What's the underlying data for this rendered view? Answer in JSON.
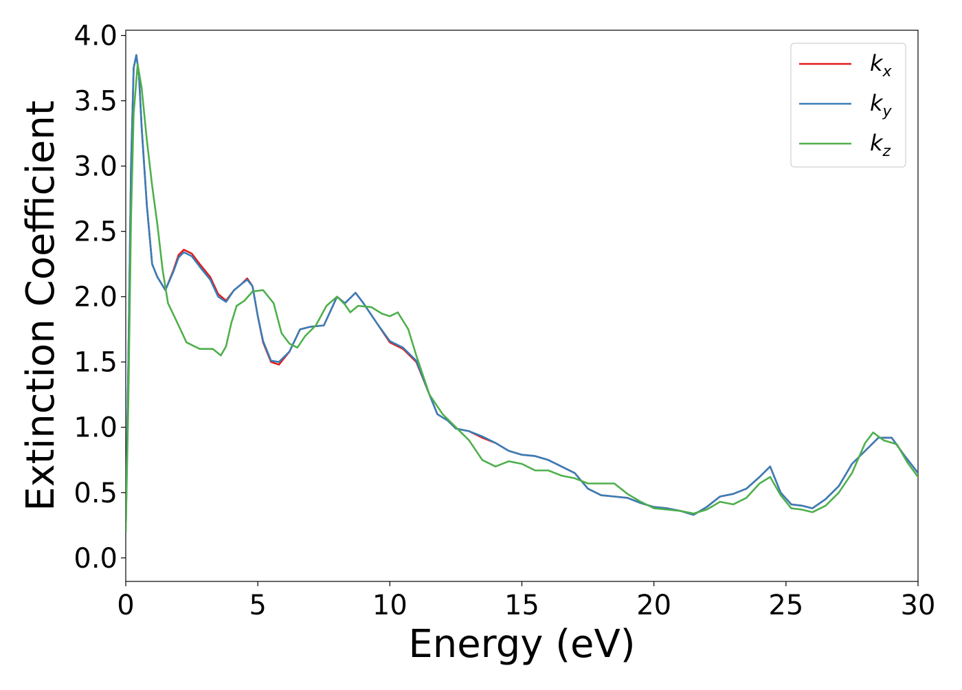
{
  "chart_data": {
    "type": "line",
    "title": "",
    "xlabel": "Energy (eV)",
    "ylabel": "Extinction Coefficient",
    "xlim": [
      0,
      30
    ],
    "ylim": [
      -0.18,
      4.04
    ],
    "xticks": [
      0,
      5,
      10,
      15,
      20,
      25,
      30
    ],
    "xtick_labels": [
      "0",
      "5",
      "10",
      "15",
      "20",
      "25",
      "30"
    ],
    "yticks": [
      0.0,
      0.5,
      1.0,
      1.5,
      2.0,
      2.5,
      3.0,
      3.5,
      4.0
    ],
    "ytick_labels": [
      "0.0",
      "0.5",
      "1.0",
      "1.5",
      "2.0",
      "2.5",
      "3.0",
      "3.5",
      "4.0"
    ],
    "grid": false,
    "legend_position": "top-right",
    "series": [
      {
        "name": "k_x",
        "label_base": "k",
        "label_sub": "x",
        "color": "#e41a1c",
        "points": [
          [
            0,
            0.2
          ],
          [
            0.1,
            1.5
          ],
          [
            0.2,
            3.0
          ],
          [
            0.3,
            3.75
          ],
          [
            0.4,
            3.85
          ],
          [
            0.5,
            3.7
          ],
          [
            0.6,
            3.3
          ],
          [
            0.8,
            2.7
          ],
          [
            1.0,
            2.25
          ],
          [
            1.2,
            2.15
          ],
          [
            1.5,
            2.05
          ],
          [
            1.8,
            2.2
          ],
          [
            2.0,
            2.32
          ],
          [
            2.2,
            2.36
          ],
          [
            2.5,
            2.33
          ],
          [
            2.8,
            2.25
          ],
          [
            3.2,
            2.15
          ],
          [
            3.5,
            2.02
          ],
          [
            3.8,
            1.97
          ],
          [
            4.1,
            2.05
          ],
          [
            4.4,
            2.1
          ],
          [
            4.6,
            2.14
          ],
          [
            4.8,
            2.08
          ],
          [
            5.0,
            1.85
          ],
          [
            5.2,
            1.65
          ],
          [
            5.5,
            1.5
          ],
          [
            5.8,
            1.48
          ],
          [
            6.2,
            1.58
          ],
          [
            6.6,
            1.75
          ],
          [
            7.0,
            1.77
          ],
          [
            7.5,
            1.78
          ],
          [
            8.0,
            2.0
          ],
          [
            8.3,
            1.95
          ],
          [
            8.7,
            2.03
          ],
          [
            9.0,
            1.95
          ],
          [
            9.5,
            1.8
          ],
          [
            10.0,
            1.65
          ],
          [
            10.5,
            1.6
          ],
          [
            11.0,
            1.5
          ],
          [
            11.5,
            1.25
          ],
          [
            11.8,
            1.1
          ],
          [
            12.2,
            1.05
          ],
          [
            12.5,
            0.99
          ],
          [
            13.0,
            0.97
          ],
          [
            13.5,
            0.92
          ],
          [
            14.0,
            0.88
          ],
          [
            14.5,
            0.82
          ],
          [
            15.0,
            0.79
          ],
          [
            15.5,
            0.78
          ],
          [
            16.0,
            0.75
          ],
          [
            16.5,
            0.7
          ],
          [
            17.0,
            0.65
          ],
          [
            17.5,
            0.53
          ],
          [
            18.0,
            0.48
          ],
          [
            18.5,
            0.47
          ],
          [
            19.0,
            0.46
          ],
          [
            19.5,
            0.42
          ],
          [
            20.0,
            0.39
          ],
          [
            20.5,
            0.38
          ],
          [
            21.0,
            0.36
          ],
          [
            21.5,
            0.33
          ],
          [
            22.0,
            0.39
          ],
          [
            22.5,
            0.47
          ],
          [
            23.0,
            0.49
          ],
          [
            23.5,
            0.53
          ],
          [
            24.0,
            0.62
          ],
          [
            24.4,
            0.7
          ],
          [
            24.8,
            0.5
          ],
          [
            25.2,
            0.41
          ],
          [
            25.6,
            0.4
          ],
          [
            26.0,
            0.38
          ],
          [
            26.5,
            0.45
          ],
          [
            27.0,
            0.55
          ],
          [
            27.5,
            0.72
          ],
          [
            28.0,
            0.82
          ],
          [
            28.5,
            0.92
          ],
          [
            29.0,
            0.92
          ],
          [
            29.5,
            0.78
          ],
          [
            30.0,
            0.65
          ]
        ]
      },
      {
        "name": "k_y",
        "label_base": "k",
        "label_sub": "y",
        "color": "#377eb8",
        "points": [
          [
            0,
            0.2
          ],
          [
            0.1,
            1.5
          ],
          [
            0.2,
            3.0
          ],
          [
            0.3,
            3.75
          ],
          [
            0.4,
            3.85
          ],
          [
            0.5,
            3.7
          ],
          [
            0.6,
            3.3
          ],
          [
            0.8,
            2.7
          ],
          [
            1.0,
            2.25
          ],
          [
            1.2,
            2.15
          ],
          [
            1.5,
            2.05
          ],
          [
            1.8,
            2.19
          ],
          [
            2.0,
            2.3
          ],
          [
            2.2,
            2.34
          ],
          [
            2.5,
            2.31
          ],
          [
            2.8,
            2.23
          ],
          [
            3.2,
            2.13
          ],
          [
            3.5,
            2.0
          ],
          [
            3.8,
            1.96
          ],
          [
            4.1,
            2.05
          ],
          [
            4.4,
            2.1
          ],
          [
            4.6,
            2.13
          ],
          [
            4.8,
            2.08
          ],
          [
            5.0,
            1.85
          ],
          [
            5.2,
            1.66
          ],
          [
            5.5,
            1.51
          ],
          [
            5.8,
            1.5
          ],
          [
            6.2,
            1.58
          ],
          [
            6.6,
            1.75
          ],
          [
            7.0,
            1.77
          ],
          [
            7.5,
            1.78
          ],
          [
            8.0,
            2.0
          ],
          [
            8.3,
            1.95
          ],
          [
            8.7,
            2.03
          ],
          [
            9.0,
            1.95
          ],
          [
            9.5,
            1.8
          ],
          [
            10.0,
            1.66
          ],
          [
            10.5,
            1.61
          ],
          [
            11.0,
            1.51
          ],
          [
            11.5,
            1.25
          ],
          [
            11.8,
            1.1
          ],
          [
            12.2,
            1.05
          ],
          [
            12.5,
            0.99
          ],
          [
            13.0,
            0.97
          ],
          [
            13.5,
            0.93
          ],
          [
            14.0,
            0.88
          ],
          [
            14.5,
            0.82
          ],
          [
            15.0,
            0.79
          ],
          [
            15.5,
            0.78
          ],
          [
            16.0,
            0.75
          ],
          [
            16.5,
            0.7
          ],
          [
            17.0,
            0.65
          ],
          [
            17.5,
            0.53
          ],
          [
            18.0,
            0.48
          ],
          [
            18.5,
            0.47
          ],
          [
            19.0,
            0.46
          ],
          [
            19.5,
            0.42
          ],
          [
            20.0,
            0.39
          ],
          [
            20.5,
            0.38
          ],
          [
            21.0,
            0.36
          ],
          [
            21.5,
            0.33
          ],
          [
            22.0,
            0.39
          ],
          [
            22.5,
            0.47
          ],
          [
            23.0,
            0.49
          ],
          [
            23.5,
            0.53
          ],
          [
            24.0,
            0.62
          ],
          [
            24.4,
            0.7
          ],
          [
            24.8,
            0.5
          ],
          [
            25.2,
            0.41
          ],
          [
            25.6,
            0.4
          ],
          [
            26.0,
            0.38
          ],
          [
            26.5,
            0.45
          ],
          [
            27.0,
            0.55
          ],
          [
            27.5,
            0.72
          ],
          [
            28.0,
            0.82
          ],
          [
            28.5,
            0.92
          ],
          [
            29.0,
            0.92
          ],
          [
            29.5,
            0.78
          ],
          [
            30.0,
            0.65
          ]
        ]
      },
      {
        "name": "k_z",
        "label_base": "k",
        "label_sub": "z",
        "color": "#4daf4a",
        "points": [
          [
            0,
            0.2
          ],
          [
            0.1,
            1.2
          ],
          [
            0.2,
            2.6
          ],
          [
            0.3,
            3.4
          ],
          [
            0.45,
            3.78
          ],
          [
            0.6,
            3.6
          ],
          [
            0.8,
            3.2
          ],
          [
            1.0,
            2.85
          ],
          [
            1.2,
            2.55
          ],
          [
            1.4,
            2.2
          ],
          [
            1.6,
            1.95
          ],
          [
            2.0,
            1.78
          ],
          [
            2.3,
            1.65
          ],
          [
            2.8,
            1.6
          ],
          [
            3.3,
            1.6
          ],
          [
            3.6,
            1.55
          ],
          [
            3.8,
            1.62
          ],
          [
            4.0,
            1.8
          ],
          [
            4.2,
            1.93
          ],
          [
            4.5,
            1.97
          ],
          [
            4.8,
            2.04
          ],
          [
            5.2,
            2.05
          ],
          [
            5.6,
            1.95
          ],
          [
            5.9,
            1.72
          ],
          [
            6.2,
            1.64
          ],
          [
            6.5,
            1.61
          ],
          [
            6.8,
            1.7
          ],
          [
            7.2,
            1.78
          ],
          [
            7.6,
            1.93
          ],
          [
            8.0,
            2.0
          ],
          [
            8.3,
            1.94
          ],
          [
            8.5,
            1.88
          ],
          [
            8.8,
            1.93
          ],
          [
            9.3,
            1.92
          ],
          [
            9.7,
            1.87
          ],
          [
            10.0,
            1.85
          ],
          [
            10.3,
            1.88
          ],
          [
            10.7,
            1.75
          ],
          [
            11.0,
            1.55
          ],
          [
            11.5,
            1.25
          ],
          [
            12.0,
            1.1
          ],
          [
            12.5,
            1.0
          ],
          [
            13.0,
            0.9
          ],
          [
            13.5,
            0.75
          ],
          [
            14.0,
            0.7
          ],
          [
            14.5,
            0.74
          ],
          [
            15.0,
            0.72
          ],
          [
            15.5,
            0.67
          ],
          [
            16.0,
            0.67
          ],
          [
            16.5,
            0.63
          ],
          [
            17.0,
            0.61
          ],
          [
            17.5,
            0.57
          ],
          [
            18.0,
            0.57
          ],
          [
            18.5,
            0.57
          ],
          [
            19.0,
            0.49
          ],
          [
            19.5,
            0.43
          ],
          [
            20.0,
            0.38
          ],
          [
            20.5,
            0.37
          ],
          [
            21.0,
            0.36
          ],
          [
            21.5,
            0.34
          ],
          [
            22.0,
            0.37
          ],
          [
            22.5,
            0.43
          ],
          [
            23.0,
            0.41
          ],
          [
            23.5,
            0.46
          ],
          [
            24.0,
            0.57
          ],
          [
            24.4,
            0.62
          ],
          [
            24.8,
            0.48
          ],
          [
            25.2,
            0.38
          ],
          [
            25.6,
            0.37
          ],
          [
            26.0,
            0.35
          ],
          [
            26.5,
            0.4
          ],
          [
            27.0,
            0.5
          ],
          [
            27.5,
            0.65
          ],
          [
            28.0,
            0.88
          ],
          [
            28.3,
            0.96
          ],
          [
            28.7,
            0.9
          ],
          [
            29.2,
            0.87
          ],
          [
            29.6,
            0.73
          ],
          [
            30.0,
            0.62
          ]
        ]
      }
    ]
  }
}
